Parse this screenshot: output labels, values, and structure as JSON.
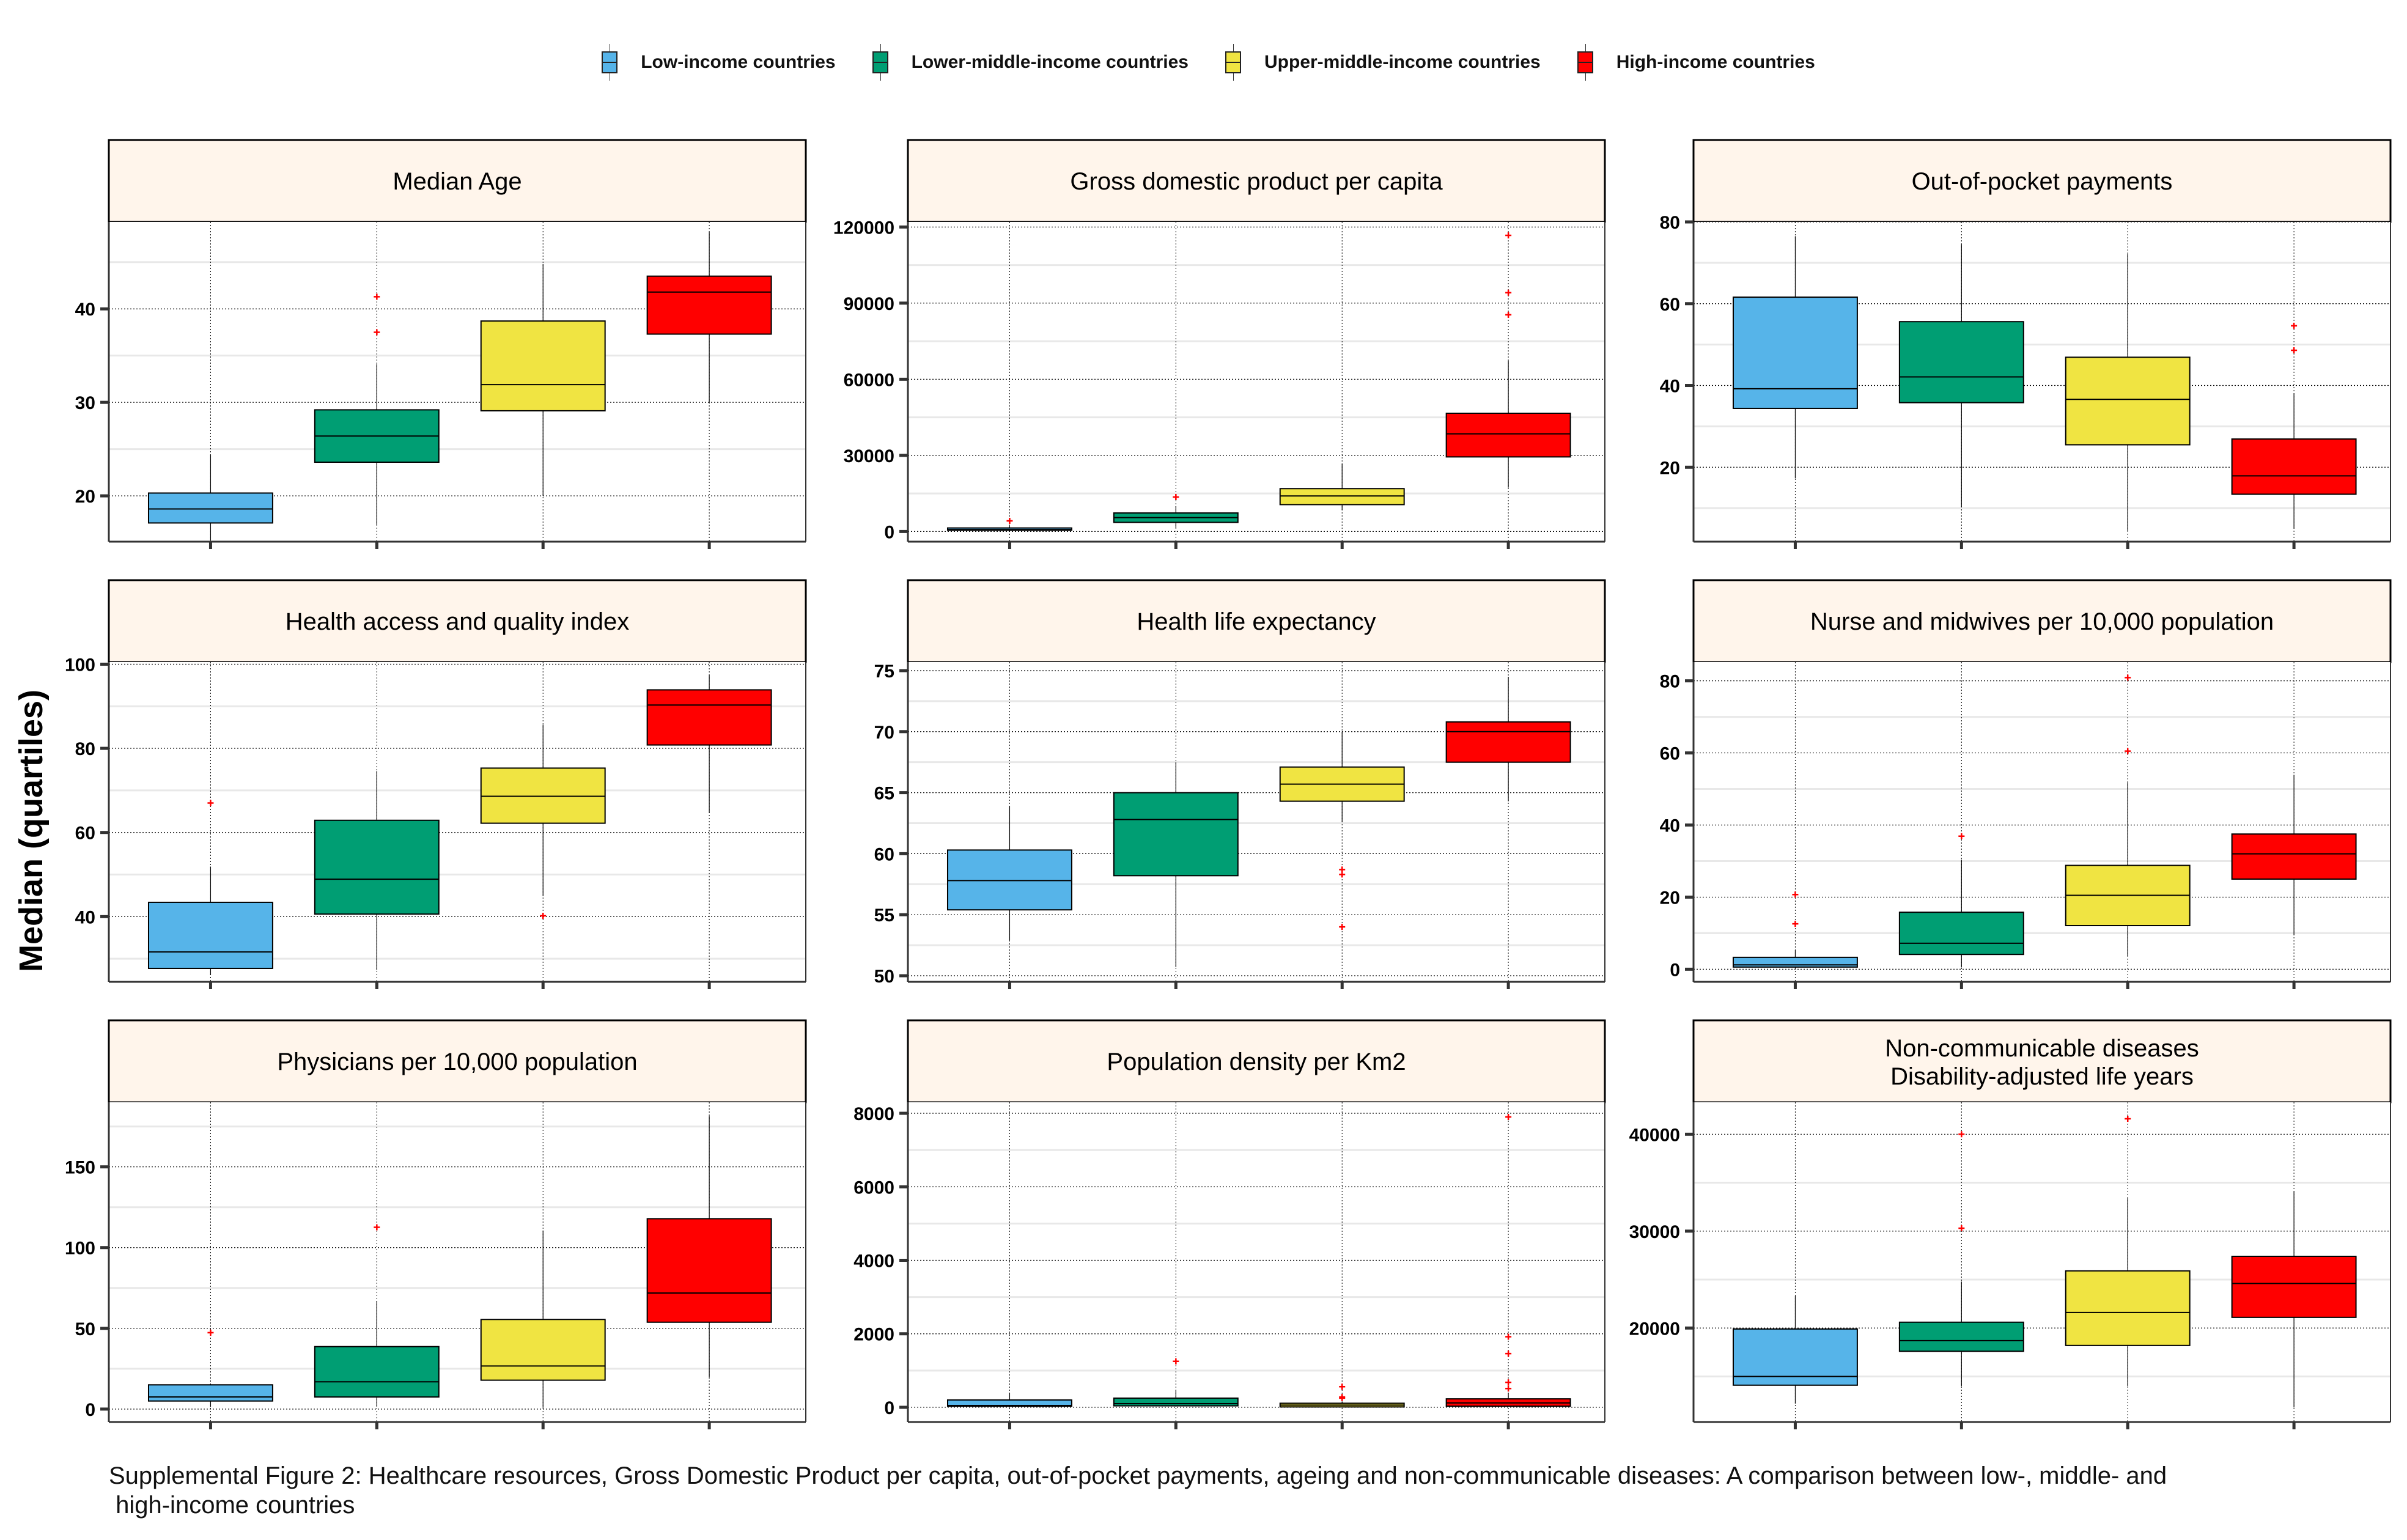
{
  "legend": {
    "items": [
      {
        "label": "Low-income countries",
        "color": "#56B4E9"
      },
      {
        "label": "Lower-middle-income countries",
        "color": "#009E73"
      },
      {
        "label": "Upper-middle-income countries",
        "color": "#F0E442"
      },
      {
        "label": "High-income countries",
        "color": "#FF0000"
      }
    ]
  },
  "y_axis_label": "Median (quartiles)",
  "caption_line1": "Supplemental Figure 2: Healthcare resources, Gross Domestic Product per capita, out-of-pocket payments, ageing and non-communicable diseases: A comparison between low-, middle- and",
  "caption_line2": " high-income countries",
  "style": {
    "strip_fill": "#FFF5EB",
    "outlier_color": "#FF0000",
    "major_grid": "dotted",
    "minor_grid_color": "#E8E8E8"
  },
  "chart_data": [
    {
      "type": "box",
      "title": "Median Age",
      "categories": [
        "Low-income countries",
        "Lower-middle-income countries",
        "Upper-middle-income countries",
        "High-income countries"
      ],
      "ylim": [
        15.1,
        49.3
      ],
      "yticks": [
        20,
        30,
        40
      ],
      "minor_yticks": [
        15,
        25,
        35,
        45
      ],
      "series": [
        {
          "min": 15.3,
          "q1": 17.1,
          "median": 18.6,
          "q3": 20.3,
          "max": 24.4,
          "outliers": []
        },
        {
          "min": 16.9,
          "q1": 23.6,
          "median": 26.4,
          "q3": 29.2,
          "max": 34.1,
          "outliers": [
            37.5,
            41.3
          ]
        },
        {
          "min": 20.0,
          "q1": 29.1,
          "median": 31.9,
          "q3": 38.7,
          "max": 44.8,
          "outliers": []
        },
        {
          "min": 29.9,
          "q1": 37.3,
          "median": 41.8,
          "q3": 43.5,
          "max": 48.2,
          "outliers": []
        }
      ]
    },
    {
      "type": "box",
      "title": "Gross domestic product per capita",
      "categories": [
        "Low-income countries",
        "Lower-middle-income countries",
        "Upper-middle-income countries",
        "High-income countries"
      ],
      "ylim": [
        -4000,
        122000
      ],
      "yticks": [
        0,
        30000,
        60000,
        90000,
        120000
      ],
      "minor_yticks": [
        15000,
        45000,
        75000,
        105000
      ],
      "series": [
        {
          "min": 300,
          "q1": 500,
          "median": 800,
          "q3": 1400,
          "max": 2200,
          "outliers": [
            4200
          ]
        },
        {
          "min": 1400,
          "q1": 3600,
          "median": 5500,
          "q3": 7300,
          "max": 10000,
          "outliers": [
            13600
          ]
        },
        {
          "min": 8500,
          "q1": 10600,
          "median": 14000,
          "q3": 16900,
          "max": 26700,
          "outliers": []
        },
        {
          "min": 17300,
          "q1": 29400,
          "median": 38500,
          "q3": 46600,
          "max": 67300,
          "outliers": [
            85400,
            94100,
            116700
          ]
        }
      ]
    },
    {
      "type": "box",
      "title": "Out-of-pocket payments",
      "categories": [
        "Low-income countries",
        "Lower-middle-income countries",
        "Upper-middle-income countries",
        "High-income countries"
      ],
      "ylim": [
        1.8,
        80
      ],
      "yticks": [
        20,
        40,
        60,
        80
      ],
      "minor_yticks": [
        10,
        30,
        50,
        70
      ],
      "series": [
        {
          "min": 17.3,
          "q1": 34.4,
          "median": 39.2,
          "q3": 61.6,
          "max": 76.5,
          "outliers": []
        },
        {
          "min": 10.2,
          "q1": 35.8,
          "median": 42.1,
          "q3": 55.6,
          "max": 74.5,
          "outliers": []
        },
        {
          "min": 4.5,
          "q1": 25.5,
          "median": 36.6,
          "q3": 46.9,
          "max": 72.2,
          "outliers": []
        },
        {
          "min": 5.0,
          "q1": 13.4,
          "median": 17.9,
          "q3": 26.9,
          "max": 38.1,
          "outliers": [
            48.6,
            54.6
          ]
        }
      ]
    },
    {
      "type": "box",
      "title": "Health access and quality index",
      "categories": [
        "Low-income countries",
        "Lower-middle-income countries",
        "Upper-middle-income countries",
        "High-income countries"
      ],
      "ylim": [
        24.5,
        100.5
      ],
      "yticks": [
        40,
        60,
        80,
        100
      ],
      "minor_yticks": [
        30,
        50,
        70,
        90
      ],
      "series": [
        {
          "min": 26.1,
          "q1": 27.7,
          "median": 31.6,
          "q3": 43.4,
          "max": 51.9,
          "outliers": [
            67.0
          ]
        },
        {
          "min": 27.3,
          "q1": 40.6,
          "median": 48.9,
          "q3": 62.9,
          "max": 74.6,
          "outliers": []
        },
        {
          "min": 44.9,
          "q1": 62.2,
          "median": 68.6,
          "q3": 75.3,
          "max": 85.6,
          "outliers": [
            40.2
          ]
        },
        {
          "min": 64.6,
          "q1": 80.8,
          "median": 90.3,
          "q3": 93.9,
          "max": 97.4,
          "outliers": []
        }
      ]
    },
    {
      "type": "box",
      "title": "Health life expectancy",
      "categories": [
        "Low-income countries",
        "Lower-middle-income countries",
        "Upper-middle-income countries",
        "High-income countries"
      ],
      "ylim": [
        49.5,
        75.7
      ],
      "yticks": [
        50,
        55,
        60,
        65,
        70,
        75
      ],
      "minor_yticks": [
        52.5,
        57.5,
        62.5,
        67.5,
        72.5
      ],
      "series": [
        {
          "min": 52.9,
          "q1": 55.4,
          "median": 57.8,
          "q3": 60.3,
          "max": 63.9,
          "outliers": []
        },
        {
          "min": 50.7,
          "q1": 58.2,
          "median": 62.8,
          "q3": 65.0,
          "max": 67.5,
          "outliers": []
        },
        {
          "min": 62.6,
          "q1": 64.3,
          "median": 65.7,
          "q3": 67.1,
          "max": 70.0,
          "outliers": [
            54.0,
            58.3,
            58.7
          ]
        },
        {
          "min": 64.3,
          "q1": 67.5,
          "median": 70.0,
          "q3": 70.8,
          "max": 74.5,
          "outliers": []
        }
      ]
    },
    {
      "type": "box",
      "title": "Nurse and midwives per 10,000 population",
      "categories": [
        "Low-income countries",
        "Lower-middle-income countries",
        "Upper-middle-income countries",
        "High-income countries"
      ],
      "ylim": [
        -3.5,
        85.2
      ],
      "yticks": [
        0,
        20,
        40,
        60,
        80
      ],
      "minor_yticks": [
        10,
        30,
        50,
        70
      ],
      "series": [
        {
          "min": 0.3,
          "q1": 0.6,
          "median": 1.2,
          "q3": 3.3,
          "max": 5.3,
          "outliers": [
            12.6,
            20.7
          ]
        },
        {
          "min": 0.5,
          "q1": 4.1,
          "median": 7.2,
          "q3": 15.8,
          "max": 30.4,
          "outliers": [
            36.9
          ]
        },
        {
          "min": 3.6,
          "q1": 12.1,
          "median": 20.5,
          "q3": 28.8,
          "max": 51.8,
          "outliers": [
            60.5,
            80.9
          ]
        },
        {
          "min": 9.4,
          "q1": 25.0,
          "median": 32.0,
          "q3": 37.5,
          "max": 53.9,
          "outliers": []
        }
      ]
    },
    {
      "type": "box",
      "title": "Physicians per 10,000 population",
      "categories": [
        "Low-income countries",
        "Lower-middle-income countries",
        "Upper-middle-income countries",
        "High-income countries"
      ],
      "ylim": [
        -8,
        190
      ],
      "yticks": [
        0,
        50,
        100,
        150
      ],
      "minor_yticks": [
        25,
        75,
        125,
        175
      ],
      "series": [
        {
          "min": 1.3,
          "q1": 5.0,
          "median": 7.5,
          "q3": 15.0,
          "max": 15.5,
          "outliers": [
            47.3
          ]
        },
        {
          "min": 1.5,
          "q1": 7.5,
          "median": 16.9,
          "q3": 38.7,
          "max": 66.9,
          "outliers": [
            112.6
          ]
        },
        {
          "min": 0.8,
          "q1": 17.9,
          "median": 26.7,
          "q3": 55.5,
          "max": 110.6,
          "outliers": []
        },
        {
          "min": 19.8,
          "q1": 53.8,
          "median": 71.9,
          "q3": 117.9,
          "max": 181.5,
          "outliers": []
        }
      ]
    },
    {
      "type": "box",
      "title": "Population density per Km2",
      "categories": [
        "Low-income countries",
        "Lower-middle-income countries",
        "Upper-middle-income countries",
        "High-income countries"
      ],
      "ylim": [
        -400,
        8300
      ],
      "yticks": [
        0,
        2000,
        4000,
        6000,
        8000
      ],
      "minor_yticks": [
        1000,
        3000,
        5000,
        7000
      ],
      "series": [
        {
          "min": 10,
          "q1": 30,
          "median": 50,
          "q3": 200,
          "max": 400,
          "outliers": []
        },
        {
          "min": 20,
          "q1": 40,
          "median": 100,
          "q3": 250,
          "max": 460,
          "outliers": [
            1250
          ]
        },
        {
          "min": 5,
          "q1": 10,
          "median": 60,
          "q3": 110,
          "max": 160,
          "outliers": [
            250,
            280,
            560
          ]
        },
        {
          "min": 20,
          "q1": 30,
          "median": 120,
          "q3": 230,
          "max": 400,
          "outliers": [
            510,
            680,
            1460,
            1920,
            7900
          ]
        }
      ]
    },
    {
      "type": "box",
      "title": "Non-communicable diseases\n Disability-adjusted life years",
      "title_lines": [
        "Non-communicable diseases",
        " Disability-adjusted life years"
      ],
      "categories": [
        "Low-income countries",
        "Lower-middle-income countries",
        "Upper-middle-income countries",
        "High-income countries"
      ],
      "ylim": [
        10300,
        43300
      ],
      "yticks": [
        20000,
        30000,
        40000
      ],
      "minor_yticks": [
        15000,
        25000,
        35000
      ],
      "series": [
        {
          "min": 12200,
          "q1": 14100,
          "median": 15000,
          "q3": 19900,
          "max": 23300,
          "outliers": []
        },
        {
          "min": 14000,
          "q1": 17600,
          "median": 18700,
          "q3": 20600,
          "max": 24800,
          "outliers": [
            30300,
            40000
          ]
        },
        {
          "min": 14000,
          "q1": 18200,
          "median": 21600,
          "q3": 25900,
          "max": 33400,
          "outliers": [
            41600
          ]
        },
        {
          "min": 11800,
          "q1": 21100,
          "median": 24600,
          "q3": 27400,
          "max": 34100,
          "outliers": []
        }
      ]
    }
  ]
}
